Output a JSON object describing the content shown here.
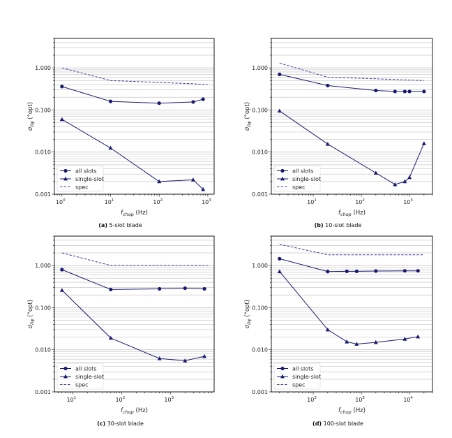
{
  "chart_data": [
    {
      "type": "line",
      "caption_tag": "(a)",
      "caption": "5-slot blade",
      "xlabel": "f_chop (Hz)",
      "ylabel": "σ_δφ (°opt)",
      "xscale": "log",
      "yscale": "log",
      "xlim": [
        0.7,
        1350
      ],
      "ylim": [
        0.001,
        5
      ],
      "xticks": [
        1,
        10,
        100,
        1000
      ],
      "yticks": [
        "0.001",
        "0.010",
        "0.100",
        "1.000"
      ],
      "grid": "horizontal major and minor",
      "legend": "lower-left",
      "series": [
        {
          "name": "all slots",
          "marker": "circle",
          "style": "solid",
          "x": [
            1,
            10,
            100,
            500,
            800
          ],
          "y": [
            0.36,
            0.16,
            0.145,
            0.155,
            0.18
          ]
        },
        {
          "name": "single-slot",
          "marker": "triangle",
          "style": "solid",
          "x": [
            1,
            10,
            100,
            500,
            800
          ],
          "y": [
            0.06,
            0.0125,
            0.002,
            0.0022,
            0.0013
          ]
        },
        {
          "name": "spec",
          "marker": "none",
          "style": "dashed",
          "x": [
            1,
            10,
            100,
            500,
            1000
          ],
          "y": [
            1.0,
            0.5,
            0.45,
            0.42,
            0.4
          ]
        }
      ]
    },
    {
      "type": "line",
      "caption_tag": "(b)",
      "caption": "10-slot blade",
      "xlabel": "f_chop (Hz)",
      "ylabel": "σ_δφ (°opt)",
      "xscale": "log",
      "yscale": "log",
      "xlim": [
        1.35,
        3000
      ],
      "ylim": [
        0.001,
        5
      ],
      "xticks": [
        10,
        100,
        1000
      ],
      "yticks": [
        "0.001",
        "0.010",
        "0.100",
        "1.000"
      ],
      "grid": "horizontal major and minor",
      "legend": "lower-left",
      "series": [
        {
          "name": "all slots",
          "marker": "circle",
          "style": "solid",
          "x": [
            2,
            20,
            200,
            500,
            800,
            1000,
            2000
          ],
          "y": [
            0.7,
            0.38,
            0.29,
            0.275,
            0.275,
            0.275,
            0.275
          ]
        },
        {
          "name": "single-slot",
          "marker": "triangle",
          "style": "solid",
          "x": [
            2,
            20,
            200,
            500,
            800,
            1000,
            2000
          ],
          "y": [
            0.095,
            0.0155,
            0.0032,
            0.0017,
            0.002,
            0.0025,
            0.016
          ]
        },
        {
          "name": "spec",
          "marker": "none",
          "style": "dashed",
          "x": [
            2,
            20,
            200,
            2000
          ],
          "y": [
            1.3,
            0.6,
            0.55,
            0.5
          ]
        }
      ]
    },
    {
      "type": "line",
      "caption_tag": "(c)",
      "caption": "30-slot blade",
      "xlabel": "f_chop (Hz)",
      "ylabel": "σ_δφ (°opt)",
      "xscale": "log",
      "yscale": "log",
      "xlim": [
        4.2,
        7900
      ],
      "ylim": [
        0.001,
        5
      ],
      "xticks": [
        10,
        100,
        1000
      ],
      "yticks": [
        "0.001",
        "0.010",
        "0.100",
        "1.000"
      ],
      "grid": "horizontal major and minor",
      "legend": "lower-left",
      "series": [
        {
          "name": "all slots",
          "marker": "circle",
          "style": "solid",
          "x": [
            6,
            60,
            600,
            2000,
            5000
          ],
          "y": [
            0.8,
            0.27,
            0.28,
            0.29,
            0.28
          ]
        },
        {
          "name": "single-slot",
          "marker": "triangle",
          "style": "solid",
          "x": [
            6,
            60,
            600,
            2000,
            5000
          ],
          "y": [
            0.26,
            0.019,
            0.0062,
            0.0055,
            0.007
          ]
        },
        {
          "name": "spec",
          "marker": "none",
          "style": "dashed",
          "x": [
            6,
            60,
            6000
          ],
          "y": [
            2.0,
            1.0,
            1.0
          ]
        }
      ]
    },
    {
      "type": "line",
      "caption_tag": "(d)",
      "caption": "100-slot blade",
      "xlabel": "f_chop (Hz)",
      "ylabel": "σ_δφ (°opt)",
      "xscale": "log",
      "yscale": "log",
      "xlim": [
        13.5,
        30000
      ],
      "ylim": [
        0.001,
        5
      ],
      "xticks": [
        100,
        1000,
        10000
      ],
      "yticks": [
        "0.001",
        "0.010",
        "0.100",
        "1.000"
      ],
      "grid": "horizontal major and minor",
      "legend": "lower-left",
      "series": [
        {
          "name": "all slots",
          "marker": "circle",
          "style": "solid",
          "x": [
            20,
            200,
            500,
            800,
            2000,
            8000,
            15000
          ],
          "y": [
            1.45,
            0.72,
            0.73,
            0.73,
            0.74,
            0.75,
            0.75
          ]
        },
        {
          "name": "single-slot",
          "marker": "triangle",
          "style": "solid",
          "x": [
            20,
            200,
            500,
            800,
            2000,
            8000,
            15000
          ],
          "y": [
            0.72,
            0.03,
            0.0155,
            0.0137,
            0.015,
            0.018,
            0.0205
          ]
        },
        {
          "name": "spec",
          "marker": "none",
          "style": "dashed",
          "x": [
            20,
            200,
            20000
          ],
          "y": [
            3.2,
            1.8,
            1.8
          ]
        }
      ]
    }
  ],
  "colors": {
    "series": "#191970",
    "spec": "#3b3b9c",
    "grid": "#c8c8c8",
    "axis": "#000000"
  }
}
